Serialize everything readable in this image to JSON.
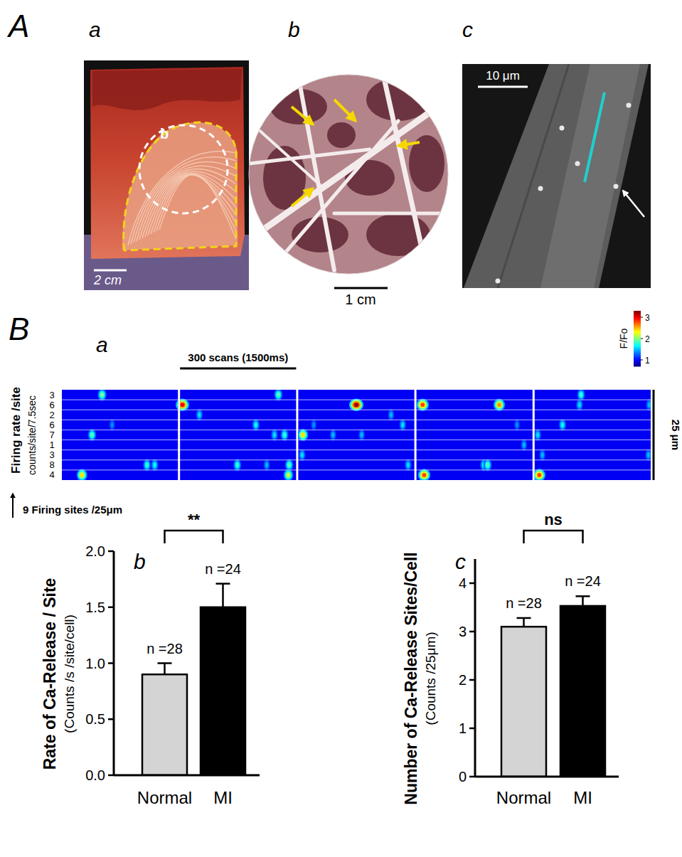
{
  "panel_A": {
    "label": "A",
    "a": {
      "label": "a",
      "region_label": "b",
      "scale_bar": "2 cm"
    },
    "b": {
      "label": "b",
      "scale_bar": "1 cm"
    },
    "c": {
      "label": "c",
      "scale_bar": "10 μm"
    }
  },
  "panel_B": {
    "label": "B",
    "a": {
      "label": "a",
      "time_bar": "300 scans (1500ms)",
      "segment_ms": 1500,
      "segments": 5,
      "space_bar": "25 μm",
      "row_title": "Firing rate /site",
      "row_subtitle": "counts/site/7.5sec",
      "sites_note": "9 Firing sites /25μm",
      "colorbar": {
        "label": "F/Fo",
        "range": [
          0.7,
          3.3
        ],
        "ticks": [
          1,
          2,
          3
        ]
      },
      "sites": [
        {
          "rate": 3,
          "t_ms": [
            520,
            2770,
            6600
          ],
          "amplitude": [
            2.0,
            1.9,
            1.8
          ]
        },
        {
          "rate": 6,
          "t_ms": [
            1530,
            3750,
            4580,
            5570,
            6580,
            7480
          ],
          "amplitude": [
            3.0,
            3.2,
            2.8,
            2.6,
            1.6,
            1.5
          ]
        },
        {
          "rate": 2,
          "t_ms": [
            1750,
            4200
          ],
          "amplitude": [
            1.6,
            1.5
          ]
        },
        {
          "rate": 6,
          "t_ms": [
            650,
            2480,
            3200,
            4350,
            5800,
            6360
          ],
          "amplitude": [
            1.4,
            1.7,
            1.4,
            1.6,
            1.4,
            1.7
          ]
        },
        {
          "rate": 7,
          "t_ms": [
            390,
            2720,
            2850,
            3060,
            3450,
            3820,
            6040
          ],
          "amplitude": [
            1.9,
            1.6,
            1.8,
            2.4,
            1.5,
            1.5,
            1.6
          ]
        },
        {
          "rate": 1,
          "t_ms": [
            5890
          ],
          "amplitude": [
            1.5
          ]
        },
        {
          "rate": 3,
          "t_ms": [
            3050,
            6100,
            7470
          ],
          "amplitude": [
            1.6,
            1.5,
            1.5
          ]
        },
        {
          "rate": 8,
          "t_ms": [
            1100,
            1200,
            2240,
            2620,
            2910,
            4420,
            5370,
            5420
          ],
          "amplitude": [
            1.8,
            1.7,
            1.8,
            1.5,
            1.9,
            1.6,
            1.7,
            1.9
          ]
        },
        {
          "rate": 4,
          "t_ms": [
            260,
            2900,
            4600,
            6060
          ],
          "amplitude": [
            2.4,
            2.2,
            2.8,
            2.8
          ]
        }
      ]
    }
  },
  "chart_data": [
    {
      "type": "bar",
      "panel_label": "b",
      "y_label": "Rate of Ca-Release / Site",
      "y_sublabel": "(Counts /s /site/cell)",
      "categories": [
        "Normal",
        "MI"
      ],
      "values": [
        0.9,
        1.5
      ],
      "errors": [
        0.1,
        0.21
      ],
      "n_labels": [
        "n =28",
        "n =24"
      ],
      "colors": [
        "#d4d4d4",
        "#000000"
      ],
      "significance": "**",
      "ylim": [
        0,
        2
      ],
      "yticks": [
        {
          "value": 0,
          "label": "0.0"
        },
        {
          "value": 0.5,
          "label": "0.5"
        },
        {
          "value": 1,
          "label": "1.0"
        },
        {
          "value": 1.5,
          "label": "1.5"
        },
        {
          "value": 2,
          "label": "2.0"
        }
      ]
    },
    {
      "type": "bar",
      "panel_label": "c",
      "y_label": "Number of Ca-Release Sites/Cell",
      "y_sublabel": "(Counts /25μm)",
      "categories": [
        "Normal",
        "MI"
      ],
      "values": [
        3.1,
        3.53
      ],
      "errors": [
        0.18,
        0.2
      ],
      "n_labels": [
        "n =28",
        "n =24"
      ],
      "colors": [
        "#d4d4d4",
        "#000000"
      ],
      "significance": "ns",
      "ylim": [
        0,
        4.5
      ],
      "yticks": [
        0,
        1,
        2,
        3,
        4
      ]
    }
  ]
}
